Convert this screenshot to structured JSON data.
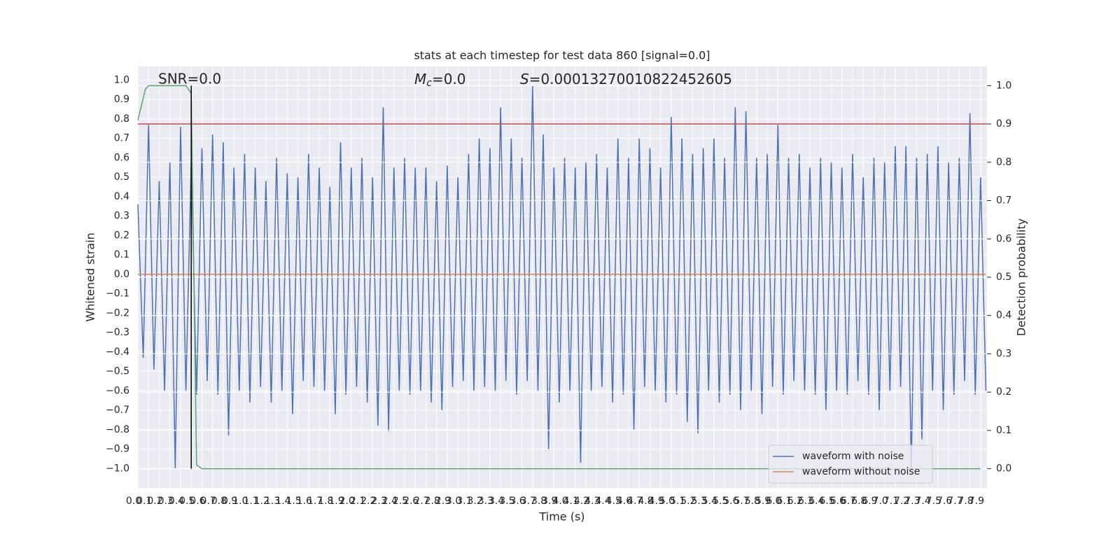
{
  "chart_data": {
    "type": "line",
    "title": "stats at each timestep for test data 860 [signal=0.0]",
    "xlabel": "Time (s)",
    "ylabel": "Whitened strain",
    "y2label": "Detection probability",
    "annotations": {
      "snr": "SNR=0.0",
      "mc_symbol": "M",
      "mc_sub": "c",
      "mc_value": "=0.0",
      "s_symbol": "S",
      "s_value": "=0.00013270010822452605"
    },
    "background": "#eaeaf2",
    "grid": true,
    "legend": "lower right",
    "xlim": [
      0,
      7.96
    ],
    "ylim": [
      -1.1,
      1.07
    ],
    "y2lim": [
      -0.05,
      1.05
    ],
    "xticks": [
      {
        "value": 0,
        "label": "0.0"
      },
      0.1,
      0.2,
      0.3,
      0.4,
      0.5,
      0.6,
      0.7,
      0.8,
      0.9,
      {
        "value": 1,
        "label": "1.0"
      },
      1.1,
      1.2,
      1.3,
      1.4,
      1.5,
      1.6,
      1.7,
      1.8,
      1.9,
      {
        "value": 2,
        "label": "2.0"
      },
      2.1,
      2.2,
      2.3,
      2.4,
      2.5,
      2.6,
      2.7,
      2.8,
      2.9,
      {
        "value": 3,
        "label": "3.0"
      },
      3.1,
      3.2,
      3.3,
      3.4,
      3.5,
      3.6,
      3.7,
      3.8,
      3.9,
      {
        "value": 4,
        "label": "4.0"
      },
      4.1,
      4.2,
      4.3,
      4.4,
      4.5,
      4.6,
      4.7,
      4.8,
      4.9,
      {
        "value": 5,
        "label": "5.0"
      },
      5.1,
      5.2,
      5.3,
      5.4,
      5.5,
      5.6,
      5.7,
      5.8,
      5.9,
      {
        "value": 6,
        "label": "6.0"
      },
      6.1,
      6.2,
      6.3,
      6.4,
      6.5,
      6.6,
      6.7,
      6.8,
      6.9,
      {
        "value": 7,
        "label": "7.0"
      },
      7.1,
      7.2,
      7.3,
      7.4,
      7.5,
      7.6,
      7.7,
      7.8,
      7.9
    ],
    "yticks": [
      {
        "value": 1,
        "label": "1.0"
      },
      0.9,
      0.8,
      0.7,
      0.6,
      0.5,
      0.4,
      0.3,
      0.2,
      0.1,
      {
        "value": 0,
        "label": "0.0"
      },
      {
        "value": -0.1,
        "label": "−0.1"
      },
      {
        "value": -0.2,
        "label": "−0.2"
      },
      {
        "value": -0.3,
        "label": "−0.3"
      },
      {
        "value": -0.4,
        "label": "−0.4"
      },
      {
        "value": -0.5,
        "label": "−0.5"
      },
      {
        "value": -0.6,
        "label": "−0.6"
      },
      {
        "value": -0.7,
        "label": "−0.7"
      },
      {
        "value": -0.8,
        "label": "−0.8"
      },
      {
        "value": -0.9,
        "label": "−0.9"
      },
      {
        "value": -1,
        "label": "−1.0"
      }
    ],
    "y2ticks": [
      {
        "value": 0,
        "label": "0.0"
      },
      0.1,
      0.2,
      0.3,
      0.4,
      0.5,
      0.6,
      0.7,
      0.8,
      0.9,
      {
        "value": 1,
        "label": "1.0"
      }
    ],
    "x": [
      0,
      0.05,
      0.1,
      0.15,
      0.2,
      0.25,
      0.3,
      0.35,
      0.4,
      0.45,
      0.5,
      0.55,
      0.6,
      0.65,
      0.7,
      0.75,
      0.8,
      0.85,
      0.9,
      0.95,
      1,
      1.05,
      1.1,
      1.15,
      1.2,
      1.25,
      1.3,
      1.35,
      1.4,
      1.45,
      1.5,
      1.55,
      1.6,
      1.65,
      1.7,
      1.75,
      1.8,
      1.85,
      1.9,
      1.95,
      2,
      2.05,
      2.1,
      2.15,
      2.2,
      2.25,
      2.3,
      2.35,
      2.4,
      2.45,
      2.5,
      2.55,
      2.6,
      2.65,
      2.7,
      2.75,
      2.8,
      2.85,
      2.9,
      2.95,
      3,
      3.05,
      3.1,
      3.15,
      3.2,
      3.25,
      3.3,
      3.35,
      3.4,
      3.45,
      3.5,
      3.55,
      3.6,
      3.65,
      3.7,
      3.75,
      3.8,
      3.85,
      3.9,
      3.95,
      4,
      4.05,
      4.1,
      4.15,
      4.2,
      4.25,
      4.3,
      4.35,
      4.4,
      4.45,
      4.5,
      4.55,
      4.6,
      4.65,
      4.7,
      4.75,
      4.8,
      4.85,
      4.9,
      4.95,
      5,
      5.05,
      5.1,
      5.15,
      5.2,
      5.25,
      5.3,
      5.35,
      5.4,
      5.45,
      5.5,
      5.55,
      5.6,
      5.65,
      5.7,
      5.75,
      5.8,
      5.85,
      5.9,
      5.95,
      6,
      6.05,
      6.1,
      6.15,
      6.2,
      6.25,
      6.3,
      6.35,
      6.4,
      6.45,
      6.5,
      6.55,
      6.6,
      6.65,
      6.7,
      6.75,
      6.8,
      6.85,
      6.9,
      6.95,
      7,
      7.05,
      7.1,
      7.15,
      7.2,
      7.25,
      7.3,
      7.35,
      7.4,
      7.45,
      7.5,
      7.55,
      7.6,
      7.65,
      7.7,
      7.75,
      7.8,
      7.85,
      7.9,
      7.95
    ],
    "series": [
      {
        "name": "waveform with noise",
        "color": "#4c72b0",
        "values": [
          0.36,
          -0.43,
          0.77,
          -0.49,
          0.48,
          -0.6,
          0.58,
          -1.0,
          0.76,
          -0.6,
          0.58,
          -0.62,
          0.65,
          -0.55,
          0.72,
          -0.62,
          0.68,
          -0.83,
          0.55,
          -0.6,
          0.62,
          -0.66,
          0.55,
          -0.58,
          0.48,
          -0.66,
          0.6,
          -0.6,
          0.52,
          -0.72,
          0.5,
          -0.55,
          0.62,
          -0.58,
          0.55,
          -0.6,
          0.45,
          -0.72,
          0.68,
          -0.62,
          0.55,
          -0.58,
          0.6,
          -0.66,
          0.5,
          -0.78,
          0.86,
          -0.81,
          0.55,
          -0.6,
          0.6,
          -0.62,
          0.55,
          -0.6,
          0.55,
          -0.66,
          0.48,
          -0.7,
          0.56,
          -0.58,
          0.5,
          -0.55,
          0.62,
          -0.6,
          0.7,
          -0.58,
          0.65,
          -0.6,
          0.86,
          -0.55,
          0.7,
          -0.62,
          0.6,
          -0.55,
          0.97,
          -0.6,
          0.72,
          -0.9,
          0.55,
          -0.66,
          0.6,
          -0.6,
          0.55,
          -0.97,
          0.58,
          -0.6,
          0.62,
          -0.58,
          0.55,
          -0.66,
          0.7,
          -0.62,
          0.6,
          -0.8,
          0.7,
          -0.58,
          0.65,
          -0.6,
          0.55,
          -0.66,
          0.81,
          -0.62,
          0.7,
          -0.76,
          0.62,
          -0.82,
          0.65,
          -0.6,
          0.7,
          -0.66,
          0.6,
          -0.62,
          0.86,
          -0.7,
          0.84,
          -0.6,
          0.6,
          -0.72,
          0.62,
          -0.58,
          0.77,
          -0.62,
          0.6,
          -0.55,
          0.62,
          -0.6,
          0.55,
          -0.62,
          0.6,
          -0.7,
          0.58,
          -0.6,
          0.55,
          -0.62,
          0.62,
          -0.55,
          0.5,
          -0.62,
          0.6,
          -0.7,
          0.58,
          -0.6,
          0.66,
          -0.58,
          0.66,
          -1.0,
          0.6,
          -0.85,
          0.62,
          -0.6,
          0.66,
          -0.7,
          0.58,
          -0.62,
          0.6,
          -0.55,
          0.83,
          -0.62,
          0.5,
          -0.6
        ]
      },
      {
        "name": "waveform without noise",
        "color": "#dd8452",
        "x": [
          0,
          7.95
        ],
        "values": [
          0,
          0
        ]
      },
      {
        "color": "#55a868",
        "axis": "y2",
        "x": [
          0,
          0.07,
          0.1,
          0.45,
          0.5,
          0.55,
          0.6,
          7.9
        ],
        "values": [
          0.91,
          0.99,
          1.0,
          1.0,
          0.98,
          0.01,
          0,
          0
        ]
      }
    ],
    "threshold": {
      "value": 0.9,
      "axis": "y2",
      "color": "#c44e52"
    },
    "event_line": {
      "x": [
        0.5,
        0.5
      ],
      "values": [
        0,
        1
      ],
      "axis": "y2",
      "color": "#000000"
    }
  }
}
